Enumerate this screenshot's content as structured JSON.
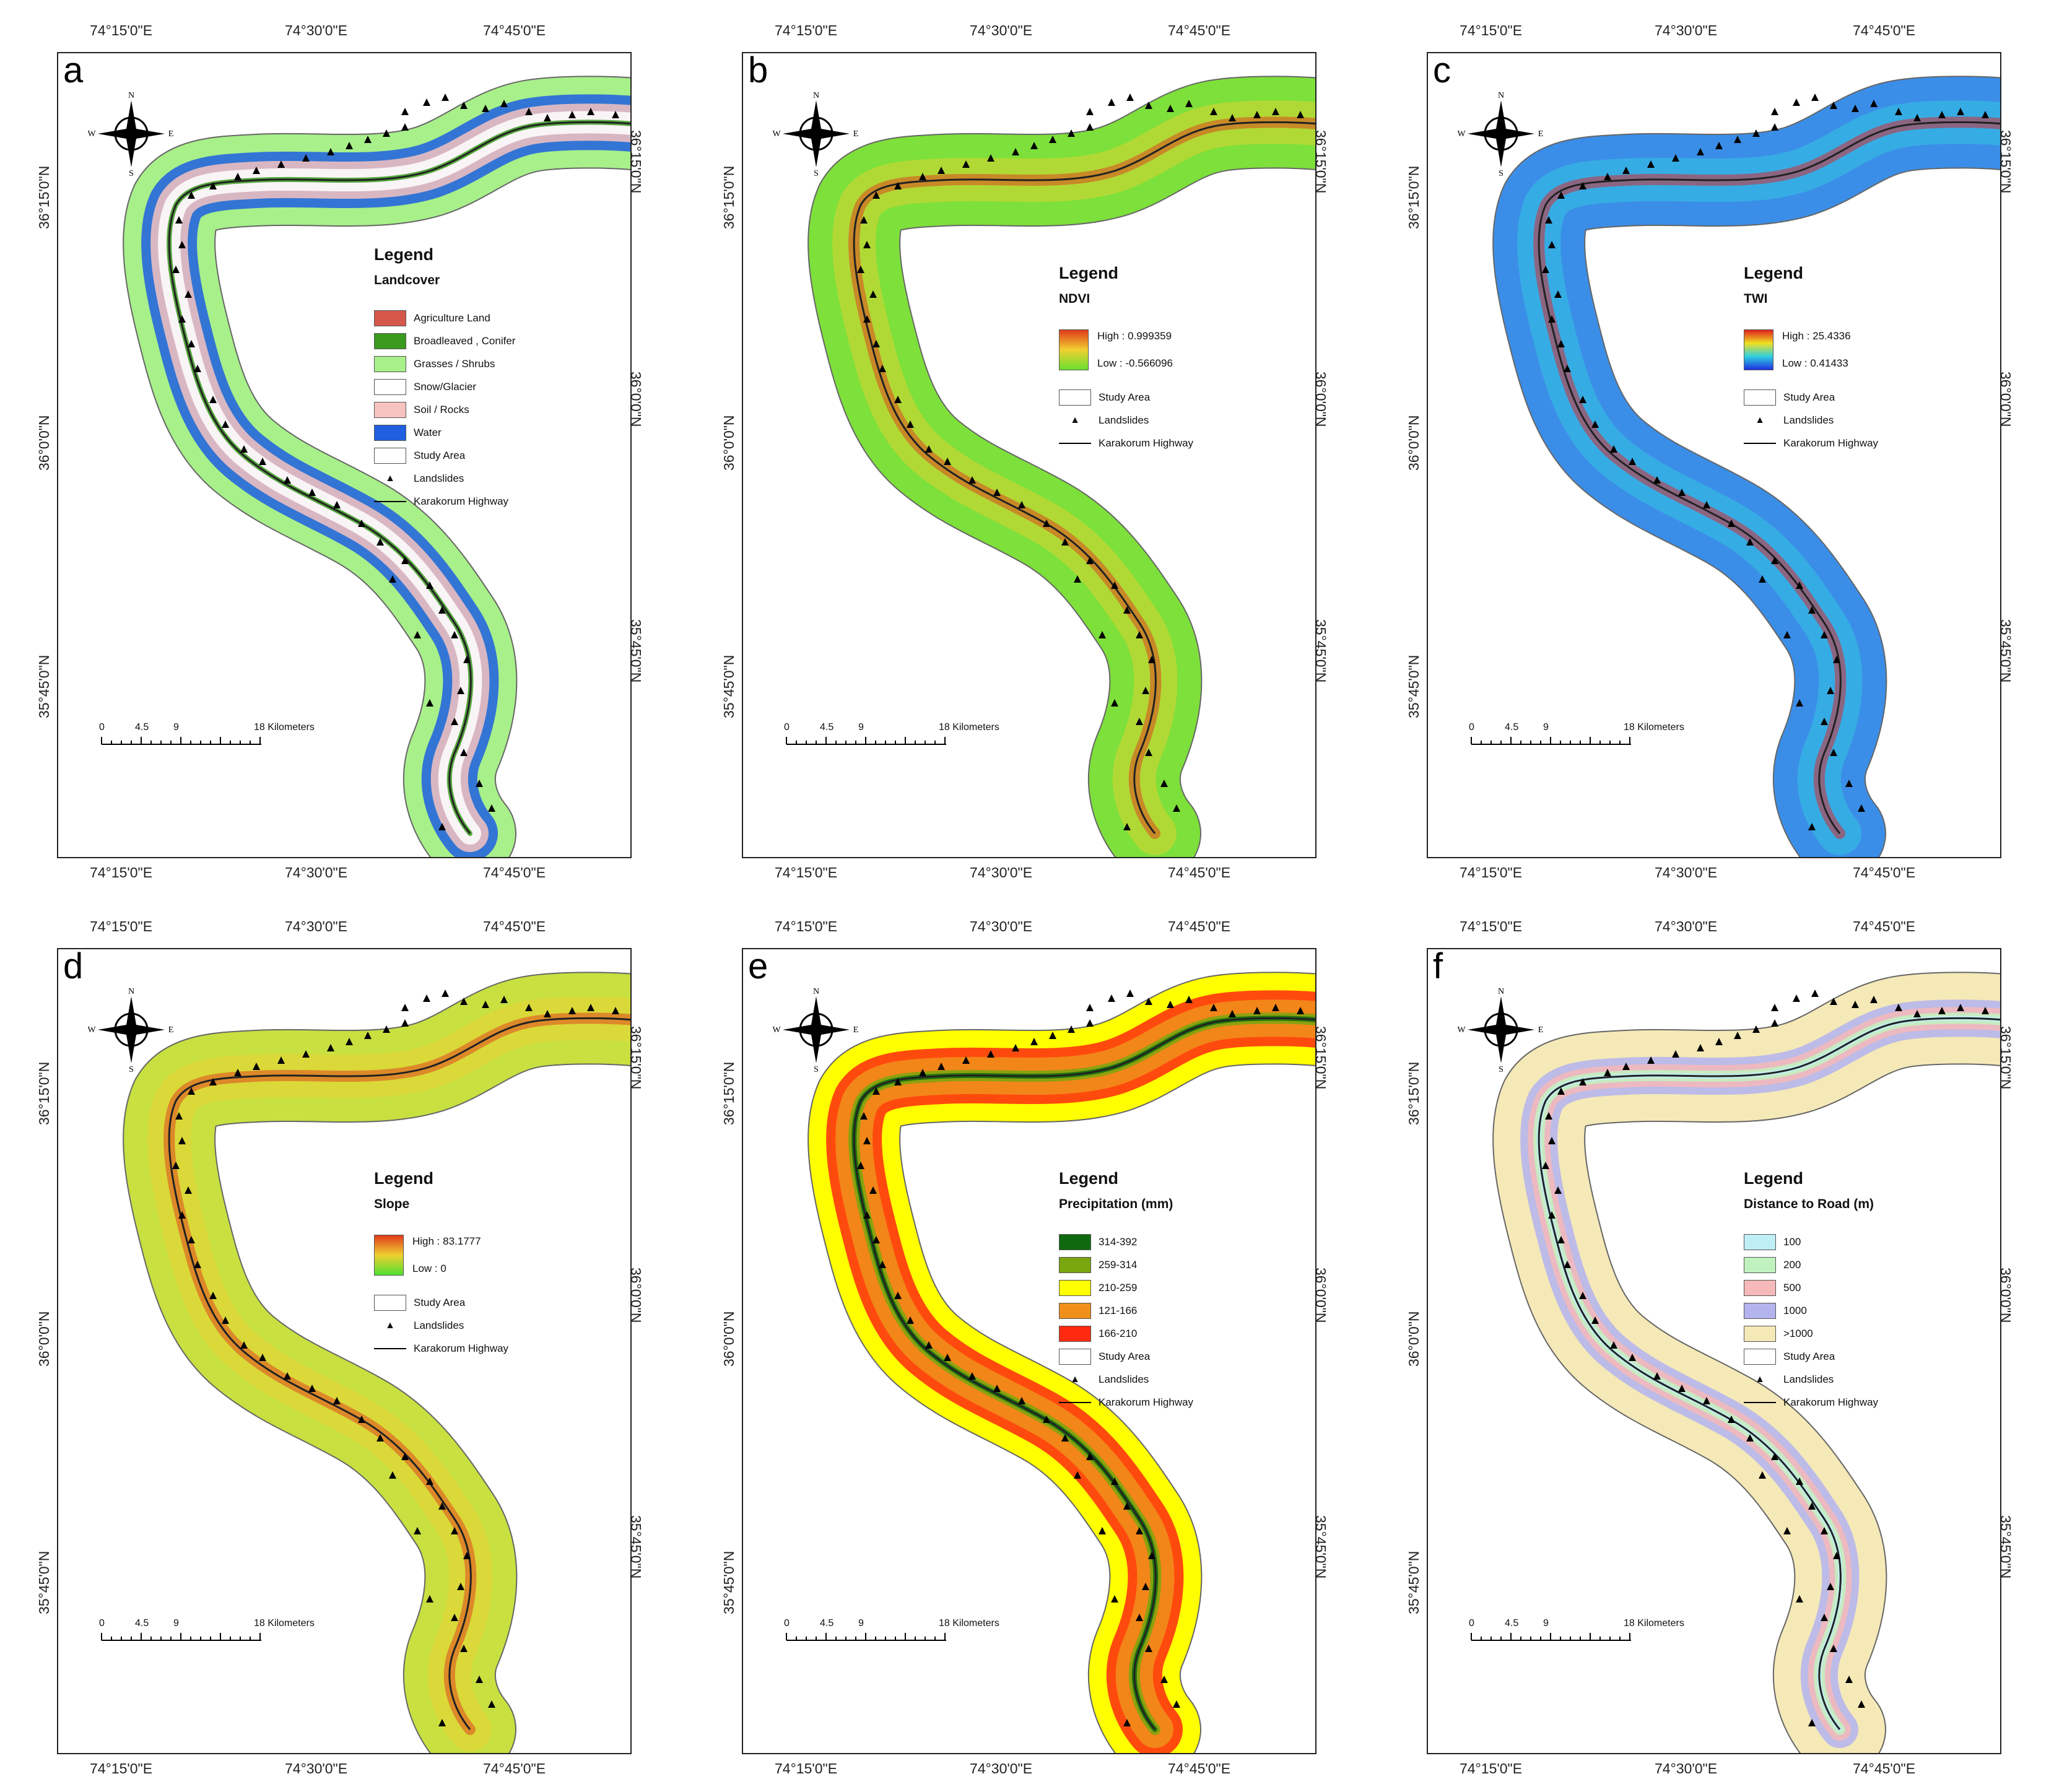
{
  "coords": {
    "top": [
      "74°15'0\"E",
      "74°30'0\"E",
      "74°45'0\"E"
    ],
    "bottom": [
      "74°15'0\"E",
      "74°30'0\"E",
      "74°45'0\"E"
    ],
    "left": [
      "36°15'0\"N",
      "36°0'0\"N",
      "35°45'0\"N"
    ],
    "right": [
      "36°15'0\"N",
      "36°0'0\"N",
      "35°45'0\"N"
    ]
  },
  "compass": {
    "n": "N",
    "s": "S",
    "e": "E",
    "w": "W"
  },
  "scale": {
    "labels": [
      "0",
      "4.5",
      "9",
      "18 Kilometers"
    ]
  },
  "common_legend": {
    "study_area": "Study Area",
    "landslides": "Landslides",
    "highway": "Karakorum Highway"
  },
  "panels": [
    {
      "letter": "a",
      "legend_title": "Legend",
      "legend_subtitle": "Landcover",
      "type": "classes",
      "fill_color": "#a8f08a",
      "classes": [
        {
          "label": "Agriculture Land",
          "color": "#d4574a"
        },
        {
          "label": "Broadleaved , Conifer",
          "color": "#3a9a1e"
        },
        {
          "label": "Grasses / Shrubs",
          "color": "#a8f08a"
        },
        {
          "label": "Snow/Glacier",
          "color": "#ffffff"
        },
        {
          "label": "Soil / Rocks",
          "color": "#f6c3c0"
        },
        {
          "label": "Water",
          "color": "#1f5fe0"
        }
      ]
    },
    {
      "letter": "b",
      "legend_title": "Legend",
      "legend_subtitle": "NDVI",
      "type": "ramp",
      "fill_color": "#7ee03a",
      "ramp_colors": [
        "#e03a1a",
        "#f0d030",
        "#6ae030"
      ],
      "high": "High : 0.999359",
      "low": "Low : -0.566096"
    },
    {
      "letter": "c",
      "legend_title": "Legend",
      "legend_subtitle": "TWI",
      "type": "ramp",
      "fill_color": "#3b8ee8",
      "ramp_colors": [
        "#e02020",
        "#f0e020",
        "#30d0e0",
        "#2030e0"
      ],
      "high": "High : 25.4336",
      "low": "Low : 0.41433"
    },
    {
      "letter": "d",
      "legend_title": "Legend",
      "legend_subtitle": "Slope",
      "type": "ramp",
      "fill_color": "#c8e040",
      "ramp_colors": [
        "#e03a1a",
        "#f0d030",
        "#50e030"
      ],
      "high": "High : 83.1777",
      "low": "Low : 0"
    },
    {
      "letter": "e",
      "legend_title": "Legend",
      "legend_subtitle": "Precipitation (mm)",
      "type": "classes",
      "fill_color": "#ffff00",
      "classes": [
        {
          "label": "314-392",
          "color": "#0f6a0f"
        },
        {
          "label": "259-314",
          "color": "#7aa60f"
        },
        {
          "label": "210-259",
          "color": "#ffff00"
        },
        {
          "label": "121-166",
          "color": "#f0901a"
        },
        {
          "label": "166-210",
          "color": "#ff2a10"
        }
      ]
    },
    {
      "letter": "f",
      "legend_title": "Legend",
      "legend_subtitle": "Distance to Road (m)",
      "type": "classes",
      "fill_color": "#f5e9b8",
      "classes": [
        {
          "label": "100",
          "color": "#bfeef5"
        },
        {
          "label": "200",
          "color": "#bff2bf"
        },
        {
          "label": "500",
          "color": "#f6b9b9"
        },
        {
          "label": "1000",
          "color": "#b3b3ee"
        },
        {
          ">label": "",
          "label": ">1000",
          "color": "#f5e9b8"
        }
      ]
    }
  ]
}
